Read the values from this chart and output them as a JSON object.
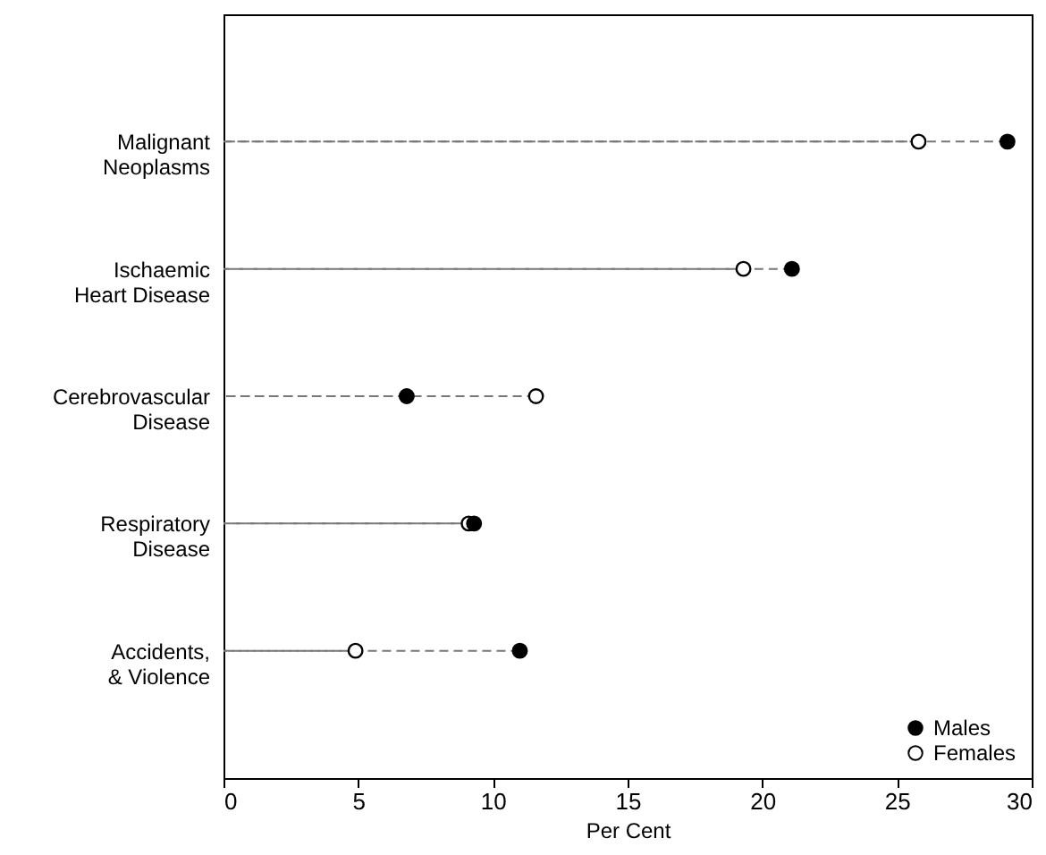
{
  "chart_data": {
    "type": "lollipop",
    "orientation": "horizontal",
    "xlabel": "Per Cent",
    "categories": [
      "Malignant Neoplasms",
      "Ischaemic Heart Disease",
      "Cerebrovascular Disease",
      "Respiratory Disease",
      "Accidents, & Violence"
    ],
    "series": [
      {
        "name": "Males",
        "color": "#000000",
        "values": [
          29.1,
          21.1,
          6.8,
          9.3,
          11.0
        ]
      },
      {
        "name": "Females",
        "color": "#ffffff",
        "values": [
          25.8,
          19.3,
          11.6,
          9.1,
          4.9
        ]
      }
    ],
    "xlim": [
      0,
      30
    ],
    "xticks": [
      0,
      5,
      10,
      15,
      20,
      25,
      30
    ],
    "grid": false,
    "legend": "bottom right",
    "marker": "circle",
    "line_style": "dashed"
  }
}
